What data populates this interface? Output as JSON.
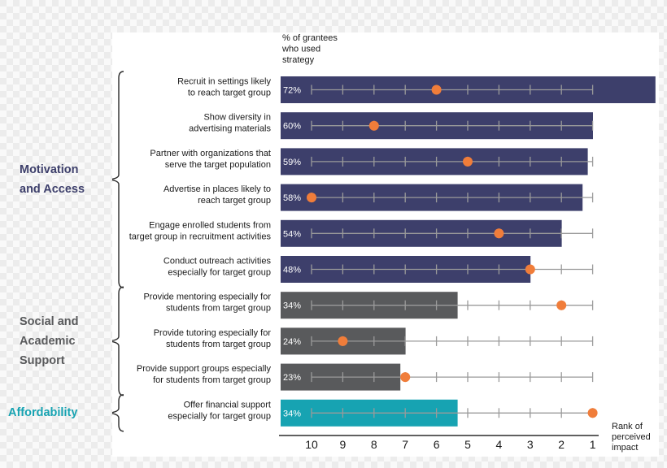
{
  "chart_data": {
    "type": "bar",
    "orientation": "horizontal",
    "pct_title": [
      "% of grantees",
      "who used",
      "strategy"
    ],
    "rank_title": [
      "Rank of",
      "perceived",
      "impact"
    ],
    "rank_axis": {
      "ticks": [
        10,
        9,
        8,
        7,
        6,
        5,
        4,
        3,
        2,
        1
      ],
      "range": [
        10,
        1
      ]
    },
    "groups": [
      {
        "label": [
          "Motivation",
          "and Access"
        ],
        "color": "#3d3f6b",
        "start": 0,
        "end": 5
      },
      {
        "label": [
          "Social and",
          "Academic",
          "Support"
        ],
        "color": "#595a5c",
        "start": 6,
        "end": 8
      },
      {
        "label": [
          "Affordability"
        ],
        "color": "#17a3b2",
        "start": 9,
        "end": 9
      }
    ],
    "categories": [
      [
        "Recruit in settings likely",
        "to reach target group"
      ],
      [
        "Show diversity in",
        "advertising materials"
      ],
      [
        "Partner with organizations that",
        "serve the target population"
      ],
      [
        "Advertise in places likely to",
        "reach target group"
      ],
      [
        "Engage enrolled students from",
        "target group in recruitment activities"
      ],
      [
        "Conduct outreach activities",
        "especially for target group"
      ],
      [
        "Provide mentoring especially for",
        "students from target group"
      ],
      [
        "Provide tutoring especially for",
        "students from target group"
      ],
      [
        "Provide support groups especially",
        "for students from target group"
      ],
      [
        "Offer financial support",
        "especially for target group"
      ]
    ],
    "series": [
      {
        "values": [
          72,
          60,
          59,
          58,
          54,
          48,
          34,
          24,
          23,
          34
        ]
      },
      {
        "values": [
          6,
          8,
          5,
          10,
          4,
          3,
          2,
          9,
          7,
          1
        ]
      }
    ],
    "value_labels": [
      "72%",
      "60%",
      "59%",
      "58%",
      "54%",
      "48%",
      "34%",
      "24%",
      "23%",
      "34%"
    ],
    "colors": {
      "motivation_bar": "#3d3f6b",
      "social_bar": "#595a5c",
      "affordability_bar": "#17a3b2",
      "rank_dot": "#f07d3a",
      "track": "#9a9a9a",
      "motivation_label": "#3d3f6b",
      "social_label": "#595a5c",
      "affordability_label": "#17a3b2"
    }
  }
}
